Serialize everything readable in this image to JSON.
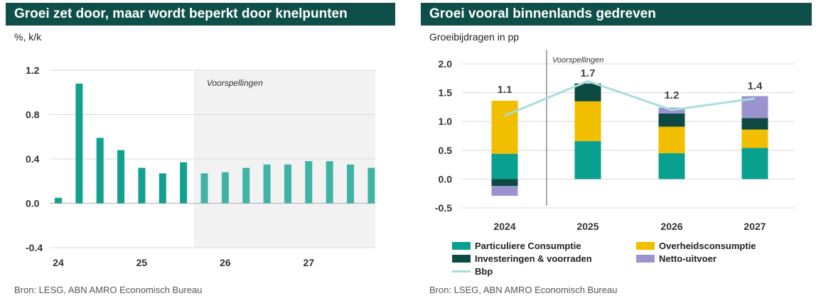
{
  "left": {
    "title": "Groei zet door, maar wordt beperkt door knelpunten",
    "subtitle": "%, k/k",
    "source": "Bron: LESG, ABN AMRO Economisch Bureau",
    "forecast_label": "Voorspellingen",
    "colors": {
      "actual": "#12a08f",
      "forecast": "#3fb3a6",
      "shade": "#f2f2f2"
    }
  },
  "right": {
    "title": "Groei vooral binnenlands gedreven",
    "subtitle": "Groeibijdragen in pp",
    "source": "Bron: LSEG, ABN AMRO Economisch Bureau",
    "forecast_label": "Voorspellingen"
  },
  "chart_data": [
    {
      "type": "bar",
      "title": "Groei zet door, maar wordt beperkt door knelpunten",
      "ylabel": "%, k/k",
      "ylim": [
        -0.4,
        1.2
      ],
      "yticks": [
        1.2,
        0.8,
        0.4,
        0.0,
        -0.4
      ],
      "ytick_labels": [
        "1.2",
        "0.8",
        "0.4",
        "0.0",
        "-0.4"
      ],
      "x_labels": [
        "24",
        "25",
        "26",
        "27"
      ],
      "label_quarter_index": [
        0,
        4,
        8,
        12
      ],
      "forecast_start_index": 7,
      "values": [
        0.05,
        1.08,
        0.59,
        0.48,
        0.32,
        0.27,
        0.37,
        0.27,
        0.28,
        0.32,
        0.35,
        0.35,
        0.38,
        0.38,
        0.35,
        0.32
      ]
    },
    {
      "type": "bar",
      "stacked": true,
      "title": "Groei vooral binnenlands gedreven",
      "ylabel": "Groeibijdragen in pp",
      "ylim": [
        -0.5,
        2.0
      ],
      "yticks": [
        2.0,
        1.5,
        1.0,
        0.5,
        0.0,
        -0.5
      ],
      "ytick_labels": [
        "2.0",
        "1.5",
        "1.0",
        "0.5",
        "0.0",
        "-0.5"
      ],
      "categories": [
        "2024",
        "2025",
        "2026",
        "2027"
      ],
      "series": [
        {
          "name": "Particuliere Consumptie",
          "color": "#0aa090",
          "values": [
            0.44,
            0.66,
            0.45,
            0.54
          ]
        },
        {
          "name": "Overheidsconsumptie",
          "color": "#f2bf00",
          "values": [
            0.92,
            0.69,
            0.46,
            0.32
          ]
        },
        {
          "name": "Investeringen & voorraden",
          "color": "#0d4a43",
          "values": [
            -0.12,
            0.31,
            0.23,
            0.2
          ]
        },
        {
          "name": "Netto-uitvoer",
          "color": "#9b93cf",
          "values": [
            -0.17,
            0.0,
            0.1,
            0.38
          ]
        }
      ],
      "line": {
        "name": "Bbp",
        "color": "#a8dedb",
        "values": [
          1.1,
          1.7,
          1.2,
          1.4
        ]
      },
      "data_labels": [
        "1.1",
        "1.7",
        "1.2",
        "1.4"
      ]
    }
  ]
}
